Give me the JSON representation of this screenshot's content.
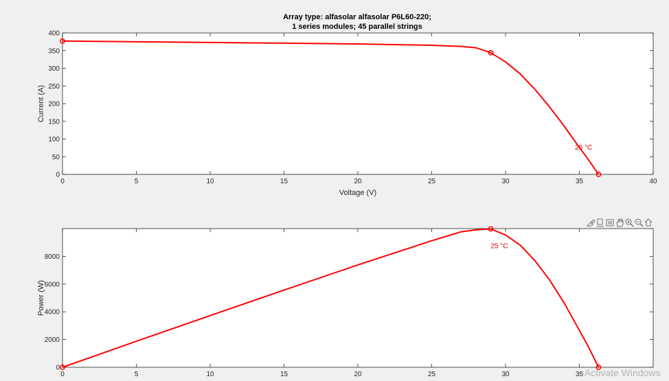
{
  "figure_title_line1": "Array type: alfasolar alfasolar P6L60-220;",
  "figure_title_line2": "1 series modules; 45 parallel strings",
  "toolbar_icons": [
    "brush-icon",
    "datatip-icon",
    "rotate-icon",
    "pan-icon",
    "zoom-in-icon",
    "zoom-out-icon",
    "home-icon"
  ],
  "watermark": "Activate Windows",
  "colors": {
    "curve": "#ff0000",
    "axes_bg": "#ffffff",
    "figure_bg": "#f0f0f0",
    "axis": "#262626"
  },
  "chart_data": [
    {
      "type": "line",
      "xlabel": "Voltage (V)",
      "ylabel": "Current (A)",
      "xlim": [
        0,
        40
      ],
      "ylim": [
        0,
        400
      ],
      "xticks": [
        0,
        5,
        10,
        15,
        20,
        25,
        30,
        35,
        40
      ],
      "yticks": [
        0,
        50,
        100,
        150,
        200,
        250,
        300,
        350,
        400
      ],
      "grid": false,
      "series": [
        {
          "x": [
            0,
            5,
            10,
            15,
            20,
            25,
            27,
            28,
            29,
            30,
            31,
            32,
            33,
            34,
            35,
            35.5,
            36,
            36.3
          ],
          "y": [
            377,
            375,
            373,
            371,
            369,
            365,
            362,
            358,
            344,
            318,
            284,
            240,
            190,
            135,
            76,
            48,
            18,
            0
          ]
        }
      ],
      "markers": [
        {
          "x": 0,
          "y": 377
        },
        {
          "x": 29,
          "y": 344
        },
        {
          "x": 36.3,
          "y": 0
        }
      ],
      "annotation": {
        "text": "25 °C",
        "x": 34.7,
        "y": 70
      }
    },
    {
      "type": "line",
      "xlabel": "",
      "ylabel": "Power (W)",
      "xlim": [
        0,
        40
      ],
      "ylim": [
        0,
        10000
      ],
      "xticks": [
        0,
        5,
        10,
        15,
        20,
        25,
        30,
        35
      ],
      "yticks": [
        0,
        2000,
        4000,
        6000,
        8000
      ],
      "grid": false,
      "series": [
        {
          "x": [
            0,
            5,
            10,
            15,
            20,
            25,
            27,
            28,
            29,
            30,
            31,
            32,
            33,
            34,
            35,
            35.5,
            36,
            36.3
          ],
          "y": [
            0,
            1875,
            3730,
            5565,
            7380,
            9125,
            9774,
            9912,
            9976,
            9540,
            8804,
            7680,
            6270,
            4590,
            2660,
            1704,
            648,
            0
          ]
        }
      ],
      "markers": [
        {
          "x": 0,
          "y": 0
        },
        {
          "x": 29,
          "y": 9976
        },
        {
          "x": 36.3,
          "y": 0
        }
      ],
      "annotation": {
        "text": "25 °C",
        "x": 29,
        "y": 8600
      }
    }
  ]
}
